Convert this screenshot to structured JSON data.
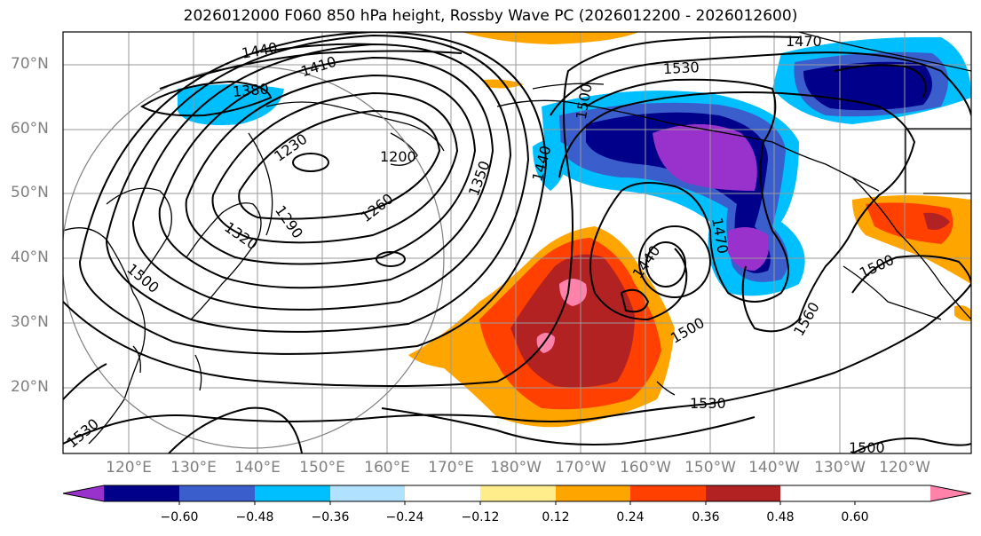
{
  "title": "2026012000 F060 850 hPa height, Rossby Wave PC (2026012200 - 2026012600)",
  "lat_labels": [
    "70°N",
    "60°N",
    "50°N",
    "40°N",
    "30°N",
    "20°N"
  ],
  "lon_labels": [
    "120°E",
    "130°E",
    "140°E",
    "150°E",
    "160°E",
    "170°E",
    "180°W",
    "170°W",
    "160°W",
    "150°W",
    "140°W",
    "130°W",
    "120°W"
  ],
  "contour_labels": [
    "1440",
    "1410",
    "1380",
    "1230",
    "1200",
    "1260",
    "1290",
    "1320",
    "1350",
    "1440",
    "1500",
    "1470",
    "1530",
    "1440",
    "1470",
    "1500",
    "1560",
    "1500",
    "1530",
    "1500",
    "1500",
    "1530"
  ],
  "colorbar": {
    "ticks": [
      "−0.60",
      "−0.48",
      "−0.36",
      "−0.24",
      "−0.12",
      "0.12",
      "0.24",
      "0.36",
      "0.48",
      "0.60"
    ],
    "colors": [
      "#9932cc",
      "#00008b",
      "#3a5ecc",
      "#00bfff",
      "#b0e2ff",
      "#ffffff",
      "#ffec8b",
      "#ffa500",
      "#ff4000",
      "#b22222",
      "#ff82ab"
    ]
  }
}
